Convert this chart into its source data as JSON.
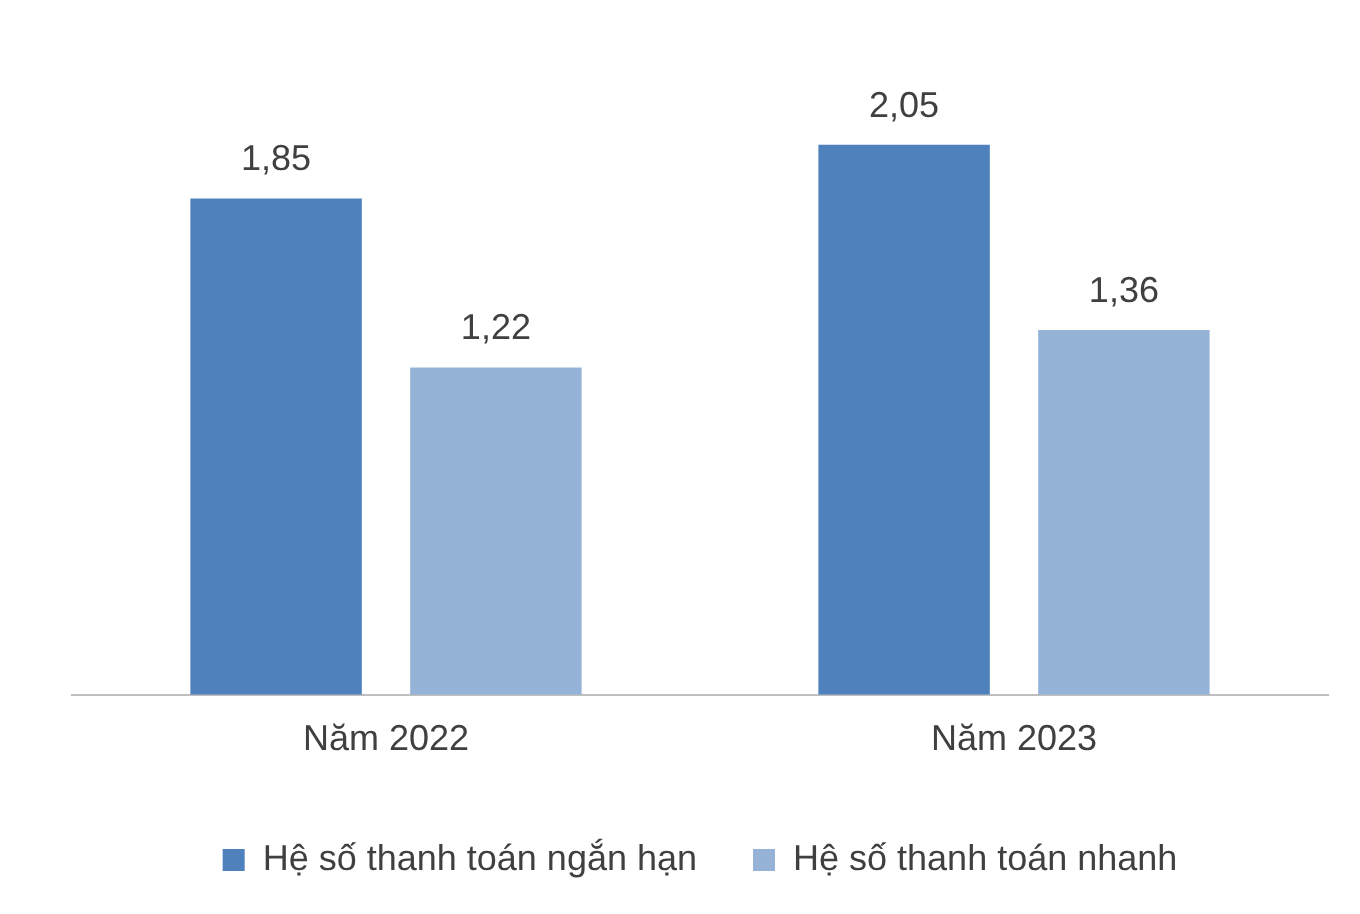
{
  "chart_data": {
    "type": "bar",
    "categories": [
      "Năm 2022",
      "Năm 2023"
    ],
    "series": [
      {
        "name": "Hệ số thanh toán ngắn hạn",
        "color": "#4f81bd",
        "values": [
          1.85,
          2.05
        ],
        "value_labels": [
          "1,85",
          "2,05"
        ]
      },
      {
        "name": "Hệ số thanh toán nhanh",
        "color": "#95b3d7",
        "values": [
          1.22,
          1.36
        ],
        "value_labels": [
          "1,22",
          "1,36"
        ]
      }
    ],
    "legend": "bottom",
    "grid": false
  }
}
